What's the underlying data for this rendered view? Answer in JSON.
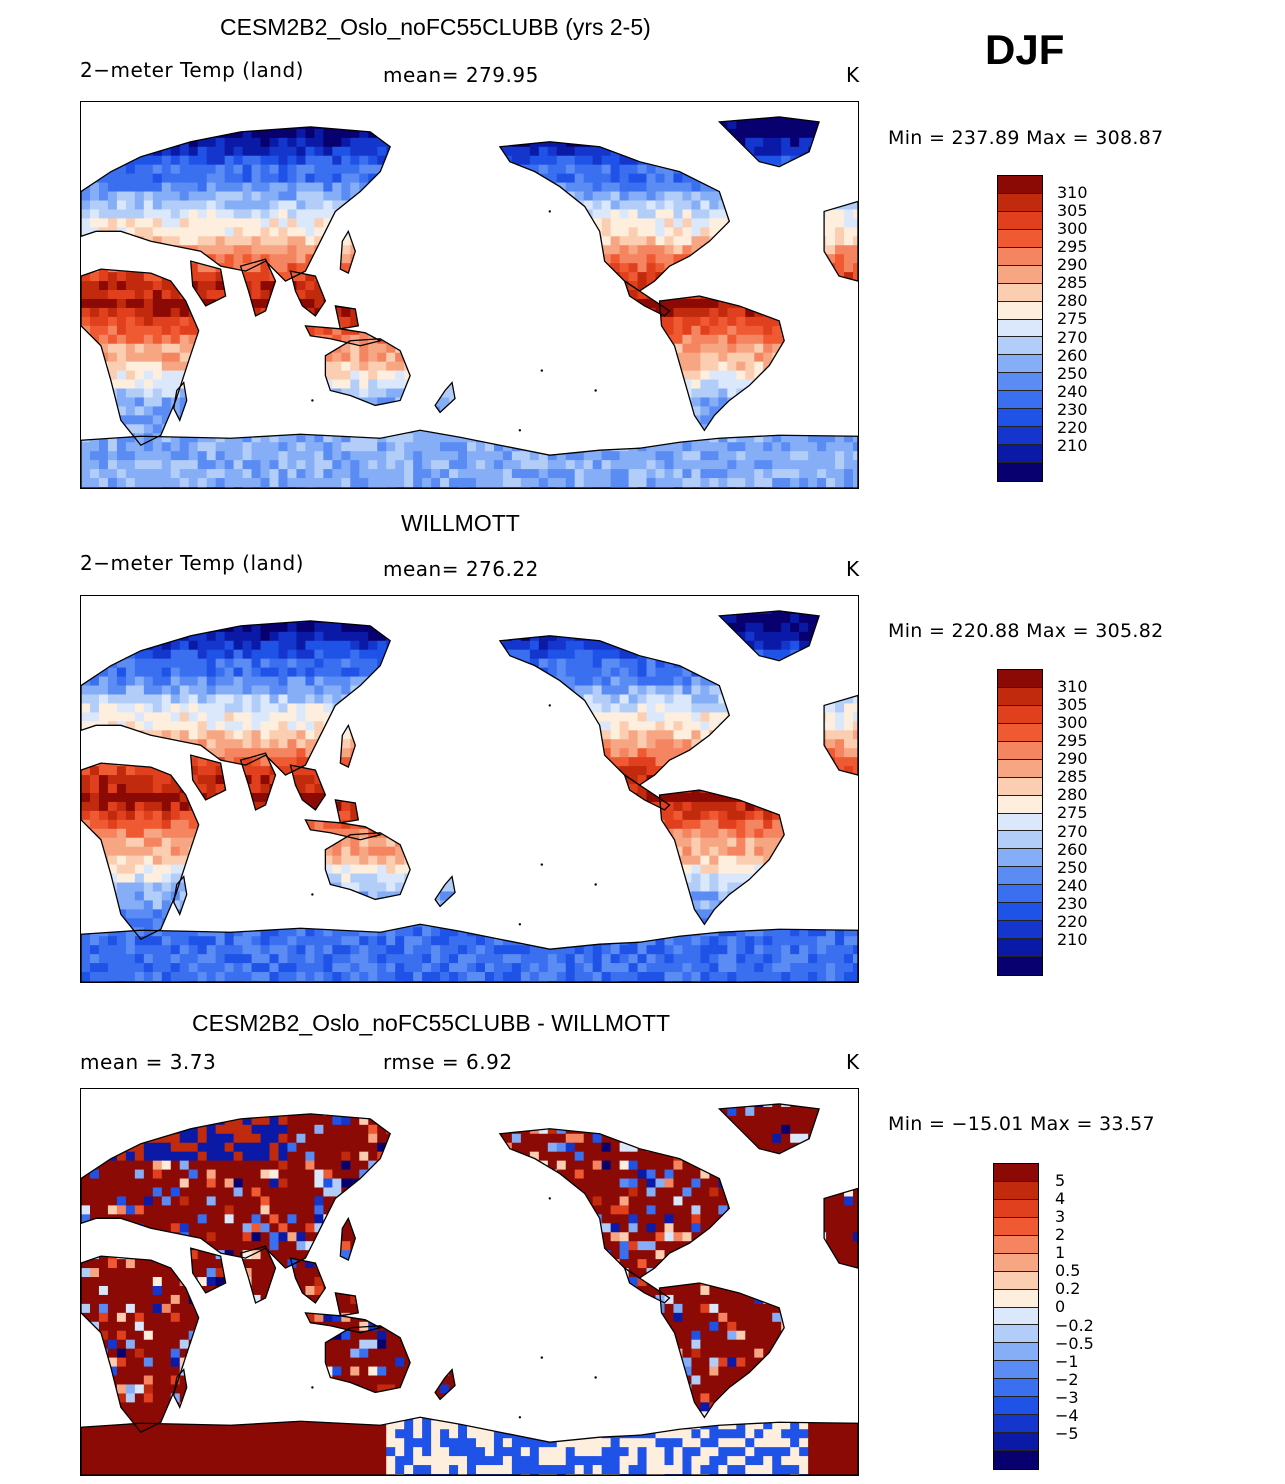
{
  "season": "DJF",
  "palettes": {
    "abs": [
      "#08006e",
      "#0a1aa6",
      "#1436cc",
      "#1f52e6",
      "#3a6ff0",
      "#5a8cf4",
      "#86aef7",
      "#b3cdf9",
      "#dbe8fc",
      "#fdeede",
      "#fbcdb1",
      "#f7a683",
      "#f48560",
      "#ef5a33",
      "#e0401d",
      "#c12a0c",
      "#8c0a05"
    ],
    "diff": [
      "#08006e",
      "#0a1aa6",
      "#1436cc",
      "#1f52e6",
      "#3a6ff0",
      "#5a8cf4",
      "#86aef7",
      "#b3cdf9",
      "#dbe8fc",
      "#fdeede",
      "#fbcdb1",
      "#f7a683",
      "#f48560",
      "#ef5a33",
      "#e0401d",
      "#c12a0c",
      "#8c0a05"
    ]
  },
  "panels": [
    {
      "id": "model",
      "title": "CESM2B2_Oslo_noFC55CLUBB (yrs 2-5)",
      "left_label": "2−meter Temp (land)",
      "mid_label": "mean=  279.95",
      "units": "K",
      "minmax": "Min  =  237.89  Max  =  308.87",
      "colorbar_labels": [
        "310",
        "305",
        "300",
        "295",
        "290",
        "285",
        "280",
        "275",
        "270",
        "260",
        "250",
        "240",
        "230",
        "220",
        "210"
      ],
      "field": {
        "kind": "abs",
        "polar_south": "#86aef7",
        "polar_north": "#5a8cf4"
      }
    },
    {
      "id": "obs",
      "title": "WILLMOTT",
      "left_label": "2−meter Temp (land)",
      "mid_label": "mean=  276.22",
      "units": "K",
      "minmax": "Min  =  220.88  Max  =  305.82",
      "colorbar_labels": [
        "310",
        "305",
        "300",
        "295",
        "290",
        "285",
        "280",
        "275",
        "270",
        "260",
        "250",
        "240",
        "230",
        "220",
        "210"
      ],
      "field": {
        "kind": "abs",
        "polar_south": "#5a8cf4",
        "polar_north": "#3a6ff0"
      }
    },
    {
      "id": "diff",
      "title": "CESM2B2_Oslo_noFC55CLUBB - WILLMOTT",
      "left_label": "mean =     3.73",
      "mid_label": "rmse =     6.92",
      "units": "K",
      "minmax": "Min  =  −15.01  Max  =    33.57",
      "colorbar_labels": [
        "5",
        "4",
        "3",
        "2",
        "1",
        "0.5",
        "0.2",
        "0",
        "−0.2",
        "−0.5",
        "−1",
        "−2",
        "−3",
        "−4",
        "−5"
      ],
      "field": {
        "kind": "diff"
      }
    }
  ]
}
